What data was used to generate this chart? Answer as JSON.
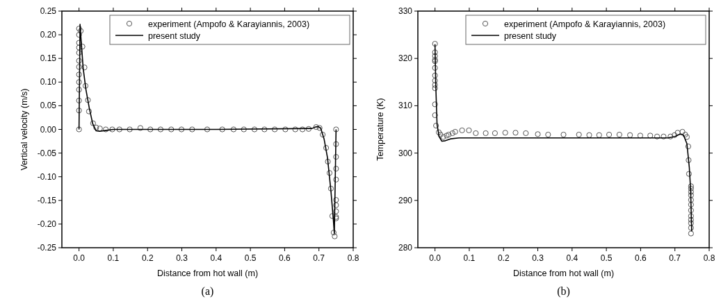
{
  "chart_data": [
    {
      "type": "line",
      "xlabel": "Distance from hot wall (m)",
      "ylabel": "Vertical velocity (m/s)",
      "annotations": [
        "(a)"
      ],
      "xlim": [
        -0.05,
        0.8
      ],
      "ylim": [
        -0.25,
        0.25
      ],
      "xticks": [
        {
          "value": 0,
          "label": "0.0"
        },
        0.1,
        0.2,
        0.3,
        0.4,
        0.5,
        0.6,
        0.7,
        0.8
      ],
      "yticks": [
        -0.25,
        {
          "value": -0.2,
          "label": "-0.20"
        },
        -0.15,
        {
          "value": -0.1,
          "label": "-0.10"
        },
        -0.05,
        {
          "value": 0,
          "label": "0.00"
        },
        0.05,
        {
          "value": 0.1,
          "label": "0.10"
        },
        0.15,
        {
          "value": 0.2,
          "label": "0.20"
        },
        0.25
      ],
      "legend": "top right",
      "grid": false,
      "series": [
        {
          "name": "experiment (Ampofo & Karayiannis, 2003)",
          "type": "scatter",
          "marker": "circle",
          "color": "#555555",
          "x": [
            0,
            0,
            0,
            0,
            0,
            0,
            0,
            0,
            0,
            0,
            0,
            0,
            0,
            0.005,
            0.01,
            0.016,
            0.019,
            0.026,
            0.029,
            0.041,
            0.05,
            0.061,
            0.078,
            0.097,
            0.118,
            0.148,
            0.179,
            0.208,
            0.238,
            0.269,
            0.299,
            0.33,
            0.374,
            0.418,
            0.451,
            0.481,
            0.512,
            0.541,
            0.571,
            0.602,
            0.631,
            0.652,
            0.67,
            0.692,
            0.702,
            0.711,
            0.721,
            0.726,
            0.731,
            0.735,
            0.739,
            0.743,
            0.746,
            0.75,
            0.75,
            0.75,
            0.75,
            0.75,
            0.75,
            0.75,
            0.75,
            0.75,
            0.75
          ],
          "values": [
            0,
            0.04,
            0.061,
            0.084,
            0.1,
            0.116,
            0.132,
            0.145,
            0.162,
            0.173,
            0.183,
            0.2,
            0.213,
            0.208,
            0.175,
            0.131,
            0.092,
            0.062,
            0.038,
            0.013,
            0.004,
            0.002,
            0,
            0,
            0,
            0,
            0.003,
            0,
            0,
            0,
            0,
            0,
            0,
            0,
            0,
            0,
            0,
            0,
            0,
            0,
            0,
            0,
            0.001,
            0.005,
            0.003,
            -0.011,
            -0.039,
            -0.068,
            -0.092,
            -0.125,
            -0.183,
            -0.218,
            -0.226,
            0,
            -0.031,
            -0.058,
            -0.083,
            -0.106,
            -0.149,
            -0.16,
            -0.173,
            -0.185,
            -0.188
          ]
        },
        {
          "name": "present study",
          "type": "line",
          "marker": "none",
          "line_style": "solid",
          "color": "#000000",
          "x": [
            0,
            0.003,
            0.006,
            0.012,
            0.02,
            0.03,
            0.04,
            0.05,
            0.06,
            0.08,
            0.1,
            0.4,
            0.68,
            0.69,
            0.697,
            0.705,
            0.715,
            0.725,
            0.735,
            0.742,
            0.745,
            0.75
          ],
          "values": [
            0,
            0.222,
            0.19,
            0.13,
            0.085,
            0.045,
            0.012,
            -0.003,
            -0.004,
            -0.002,
            0,
            0,
            0.002,
            0.005,
            0.006,
            0.003,
            -0.02,
            -0.06,
            -0.13,
            -0.19,
            -0.22,
            0
          ]
        }
      ]
    },
    {
      "type": "line",
      "xlabel": "Distance from hot wall (m)",
      "ylabel": "Temperature (K)",
      "annotations": [
        "(b)"
      ],
      "xlim": [
        -0.05,
        0.8
      ],
      "ylim": [
        280,
        330
      ],
      "xticks": [
        {
          "value": 0,
          "label": "0.0"
        },
        0.1,
        0.2,
        0.3,
        0.4,
        0.5,
        0.6,
        0.7,
        0.8
      ],
      "yticks": [
        280,
        290,
        300,
        310,
        320,
        330
      ],
      "legend": "top right",
      "grid": false,
      "series": [
        {
          "name": "experiment (Ampofo & Karayiannis, 2003)",
          "type": "scatter",
          "marker": "circle",
          "color": "#555555",
          "x": [
            0,
            0,
            0,
            0,
            0,
            0,
            0,
            0,
            0,
            0,
            0,
            0,
            0.003,
            0.011,
            0.016,
            0.024,
            0.034,
            0.04,
            0.051,
            0.059,
            0.079,
            0.099,
            0.119,
            0.148,
            0.175,
            0.205,
            0.235,
            0.265,
            0.3,
            0.33,
            0.375,
            0.42,
            0.45,
            0.479,
            0.508,
            0.538,
            0.569,
            0.599,
            0.628,
            0.648,
            0.667,
            0.687,
            0.699,
            0.708,
            0.722,
            0.73,
            0.735,
            0.739,
            0.74,
            0.741,
            0.747,
            0.747,
            0.747,
            0.747,
            0.747,
            0.747,
            0.747,
            0.747,
            0.747,
            0.747,
            0.747,
            0.747
          ],
          "values": [
            323.1,
            321.3,
            320.5,
            319.7,
            319.4,
            318,
            316.4,
            315.3,
            314.4,
            313.7,
            310.3,
            308,
            305.8,
            304.4,
            303.9,
            303.4,
            303.7,
            303.9,
            304.2,
            304.5,
            304.8,
            304.8,
            304.2,
            304.2,
            304.2,
            304.3,
            304.3,
            304.2,
            304,
            303.9,
            303.9,
            303.9,
            303.8,
            303.8,
            303.9,
            303.9,
            303.8,
            303.7,
            303.7,
            303.5,
            303.5,
            303.5,
            303.8,
            304.3,
            304.5,
            303.9,
            303.4,
            301.4,
            298.5,
            295.6,
            293,
            292.5,
            291.8,
            291.1,
            290.1,
            289.1,
            287.9,
            286.7,
            285.9,
            285.2,
            284.2,
            283
          ]
        },
        {
          "name": "present study",
          "type": "line",
          "marker": "none",
          "line_style": "solid",
          "color": "#000000",
          "x": [
            0,
            0.002,
            0.006,
            0.012,
            0.02,
            0.03,
            0.045,
            0.07,
            0.1,
            0.4,
            0.68,
            0.7,
            0.715,
            0.725,
            0.735,
            0.742,
            0.746,
            0.748,
            0.749
          ],
          "values": [
            323,
            315,
            306,
            303.5,
            302.5,
            302.6,
            303,
            303.2,
            303.2,
            303.2,
            303.2,
            303.5,
            304,
            303.8,
            302,
            297,
            292,
            286,
            283.5
          ]
        }
      ]
    }
  ]
}
